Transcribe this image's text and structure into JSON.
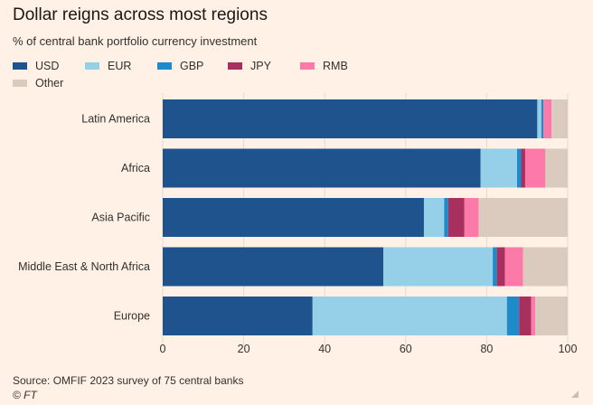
{
  "header": {
    "title": "Dollar reigns across most regions",
    "subtitle": "% of central bank portfolio currency investment"
  },
  "footer": {
    "source": "Source: OMFIF 2023 survey of 75 central banks",
    "credit": "© FT"
  },
  "chart_data": {
    "type": "bar",
    "orientation": "horizontal",
    "stacked": true,
    "title": "Dollar reigns across most regions",
    "subtitle": "% of central bank portfolio currency investment",
    "categories": [
      "Latin America",
      "Africa",
      "Asia Pacific",
      "Middle East & North Africa",
      "Europe"
    ],
    "xlim": [
      0,
      100
    ],
    "xticks": [
      0,
      20,
      40,
      60,
      80,
      100
    ],
    "grid": true,
    "legend_position": "top-left",
    "series": [
      {
        "name": "USD",
        "color": "#1f538d",
        "values": [
          92.5,
          78.5,
          64.5,
          54.5,
          37.0
        ]
      },
      {
        "name": "EUR",
        "color": "#96cfe8",
        "values": [
          1.0,
          9.0,
          5.0,
          27.0,
          48.0
        ]
      },
      {
        "name": "GBP",
        "color": "#1f8ac9",
        "values": [
          0.5,
          1.0,
          1.0,
          1.0,
          3.0
        ]
      },
      {
        "name": "JPY",
        "color": "#a8305f",
        "values": [
          0.0,
          1.0,
          4.0,
          2.0,
          3.0
        ]
      },
      {
        "name": "RMB",
        "color": "#fc7aa8",
        "values": [
          2.0,
          5.0,
          3.5,
          4.5,
          1.0
        ]
      },
      {
        "name": "Other",
        "color": "#dbcbbf",
        "values": [
          4.0,
          5.5,
          22.0,
          11.0,
          8.0
        ]
      }
    ]
  }
}
